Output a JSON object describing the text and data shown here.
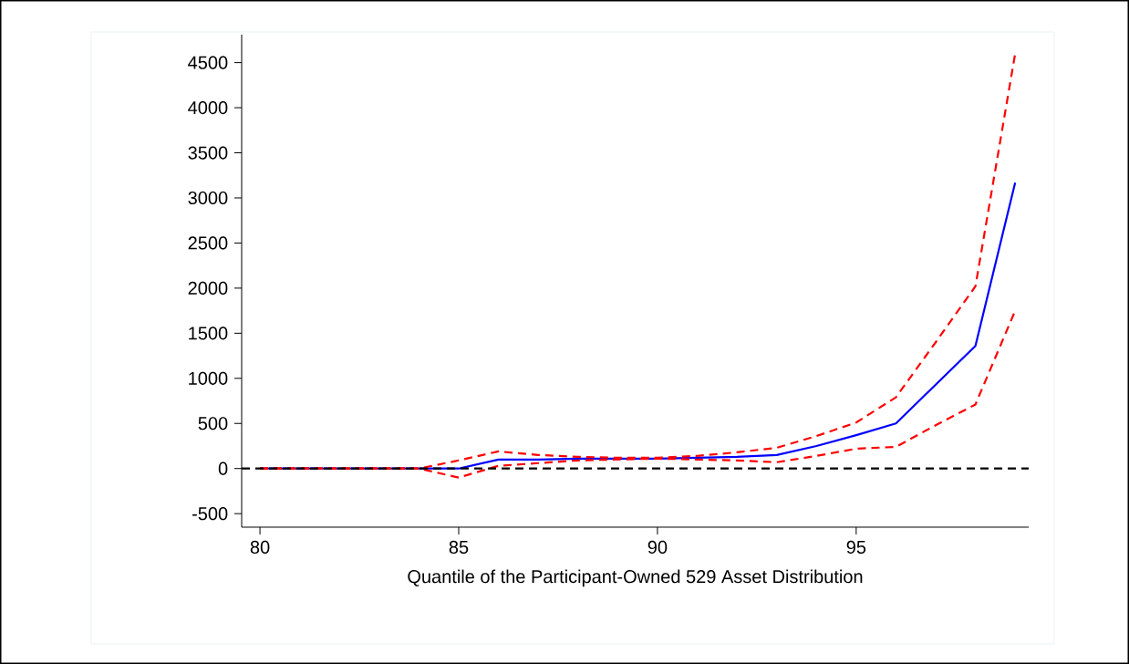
{
  "chart_data": {
    "type": "line",
    "xlabel": "Quantile of the Participant-Owned 529 Asset Distribution",
    "x": [
      80,
      81,
      82,
      83,
      84,
      85,
      86,
      87,
      88,
      89,
      90,
      91,
      92,
      93,
      94,
      95,
      96,
      97,
      98,
      99
    ],
    "series": [
      {
        "color": "#0000ff",
        "line_style": "solid",
        "values": [
          0,
          0,
          0,
          0,
          0,
          0,
          100,
          100,
          110,
          110,
          110,
          120,
          130,
          150,
          250,
          370,
          500,
          930,
          1360,
          3170
        ]
      },
      {
        "color": "#ff0000",
        "line_style": "dashed",
        "values": [
          0,
          0,
          0,
          0,
          0,
          90,
          190,
          150,
          130,
          120,
          120,
          140,
          180,
          230,
          360,
          510,
          790,
          1400,
          2020,
          4600
        ]
      },
      {
        "color": "#ff0000",
        "line_style": "dashed",
        "values": [
          0,
          0,
          0,
          0,
          0,
          -100,
          30,
          60,
          90,
          100,
          110,
          100,
          90,
          70,
          140,
          220,
          240,
          480,
          710,
          1750
        ]
      }
    ],
    "xlim": [
      79.54,
      99.34
    ],
    "ylim": [
      -650,
      4810
    ],
    "xticks": [
      80,
      85,
      90,
      95
    ],
    "yticks": [
      -500,
      0,
      500,
      1000,
      1500,
      2000,
      2500,
      3000,
      3500,
      4000,
      4500
    ],
    "ref_lines": [
      {
        "axis": "y",
        "value": 0,
        "color": "#000000",
        "line_style": "dashed"
      }
    ],
    "grid": false
  }
}
